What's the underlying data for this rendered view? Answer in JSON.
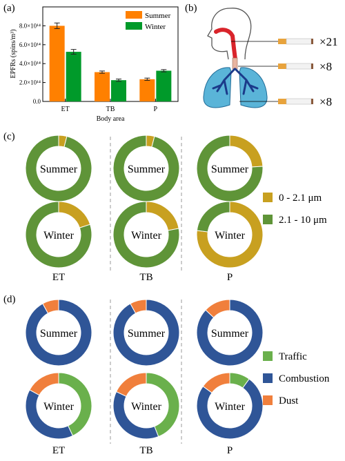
{
  "panel_labels": {
    "a": "(a)",
    "b": "(b)",
    "c": "(c)",
    "d": "(d)"
  },
  "colors": {
    "summer": "#ff8000",
    "winter": "#009a2a",
    "small": "#c8a020",
    "large": "#5f9438",
    "traffic": "#6ab04c",
    "combustion": "#2f5597",
    "dust": "#f07f3c"
  },
  "chart_data": [
    {
      "type": "bar",
      "title": "",
      "xlabel": "Body area",
      "ylabel": "EPFRs (spins/m³)",
      "categories": [
        "ET",
        "TB",
        "P"
      ],
      "series": [
        {
          "name": "Summer",
          "values": [
            800000000000000.0,
            310000000000000.0,
            235000000000000.0
          ],
          "errors": [
            30000000000000.0,
            12000000000000.0,
            12000000000000.0
          ]
        },
        {
          "name": "Winter",
          "values": [
            525000000000000.0,
            225000000000000.0,
            325000000000000.0
          ],
          "errors": [
            25000000000000.0,
            12000000000000.0,
            12000000000000.0
          ]
        }
      ],
      "ylim": [
        0,
        1000000000000000.0
      ],
      "ytick_labels": [
        "0.0",
        "2.0×10¹⁴",
        "4.0×10¹⁴",
        "6.0×10¹⁴",
        "8.0×10¹⁴"
      ],
      "legend": "top-right"
    },
    {
      "type": "pie",
      "panel": "c",
      "legend": [
        "0 - 2.1 μm",
        "2.1 - 10 μm"
      ],
      "columns": [
        "ET",
        "TB",
        "P"
      ],
      "rows": [
        "Summer",
        "Winter"
      ],
      "slices": [
        [
          [
            0.04,
            0.96
          ],
          [
            0.04,
            0.96
          ],
          [
            0.24,
            0.76
          ]
        ],
        [
          [
            0.2,
            0.8
          ],
          [
            0.22,
            0.78
          ],
          [
            0.77,
            0.23
          ]
        ]
      ]
    },
    {
      "type": "pie",
      "panel": "d",
      "legend": [
        "Traffic",
        "Combustion",
        "Dust"
      ],
      "columns": [
        "ET",
        "TB",
        "P"
      ],
      "rows": [
        "Summer",
        "Winter"
      ],
      "slices": [
        [
          [
            0.0,
            0.92,
            0.08
          ],
          [
            0.0,
            0.92,
            0.08
          ],
          [
            0.0,
            0.87,
            0.13
          ]
        ],
        [
          [
            0.43,
            0.4,
            0.17
          ],
          [
            0.44,
            0.38,
            0.18
          ],
          [
            0.1,
            0.75,
            0.15
          ]
        ]
      ]
    }
  ],
  "figure_b": {
    "multipliers": [
      "×21",
      "×8",
      "×8"
    ]
  }
}
